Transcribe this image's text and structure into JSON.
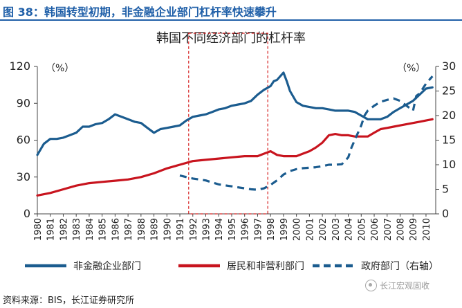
{
  "header": {
    "figure_title": "图 38：韩国转型初期，非金融企业部门杠杆率快速攀升"
  },
  "footer": {
    "source": "资料来源：BIS，长江证券研究所",
    "watermark": "长江宏观固收"
  },
  "colors": {
    "nonfin": "#1b5c8f",
    "household": "#c8141e",
    "gov": "#1b5c8f",
    "highlight": "#d62020",
    "accent": "#1f5fa8"
  },
  "chart_data": {
    "type": "line",
    "title": "韩国不同经济部门的杠杆率",
    "y_left_unit": "（%）",
    "y_right_unit": "（%）",
    "x_range": [
      1980,
      2010.75
    ],
    "ylim_left": [
      0,
      120
    ],
    "ylim_right": [
      0,
      30
    ],
    "y_ticks_left": [
      0,
      30,
      60,
      90,
      120
    ],
    "y_ticks_right": [
      0,
      5,
      10,
      15,
      20,
      25,
      30
    ],
    "x_tick_labels": [
      "1980",
      "1981",
      "1982",
      "1983",
      "1984",
      "1985",
      "1986",
      "1987",
      "1988",
      "1989",
      "1990",
      "1991",
      "1992",
      "1993",
      "1994",
      "1995",
      "1996",
      "1997",
      "1998",
      "1999",
      "2000",
      "2001",
      "2002",
      "2003",
      "2004",
      "2005",
      "2006",
      "2007",
      "2008",
      "2009",
      "2010"
    ],
    "highlight_period": [
      1992,
      1998
    ],
    "series": [
      {
        "name": "非金融企业部门",
        "axis": "left",
        "style": "solid",
        "x": [
          1980,
          1980.5,
          1981,
          1981.5,
          1982,
          1982.5,
          1983,
          1983.5,
          1984,
          1984.5,
          1985,
          1985.5,
          1986,
          1986.5,
          1987,
          1987.5,
          1988,
          1988.5,
          1989,
          1989.5,
          1990,
          1990.5,
          1991,
          1991.5,
          1992,
          1992.5,
          1993,
          1993.5,
          1994,
          1994.5,
          1995,
          1995.5,
          1996,
          1996.5,
          1997,
          1997.5,
          1998,
          1998.25,
          1998.5,
          1998.75,
          1999,
          1999.25,
          1999.5,
          2000,
          2000.5,
          2001,
          2001.5,
          2002,
          2002.5,
          2003,
          2003.5,
          2004,
          2004.5,
          2005,
          2005.5,
          2006,
          2006.5,
          2007,
          2007.5,
          2008,
          2008.5,
          2009,
          2009.5,
          2010,
          2010.5
        ],
        "values": [
          48,
          57,
          61,
          61,
          62,
          64,
          66,
          71,
          71,
          73,
          74,
          77,
          81,
          79,
          77,
          75,
          74,
          70,
          66,
          69,
          70,
          71,
          72,
          76,
          79,
          80,
          81,
          83,
          85,
          86,
          88,
          89,
          90,
          92,
          97,
          101,
          104,
          108,
          109,
          112,
          115,
          108,
          100,
          91,
          88,
          87,
          86,
          86,
          85,
          84,
          84,
          84,
          83,
          80,
          77,
          77,
          77,
          79,
          83,
          86,
          89,
          92,
          97,
          102,
          103
        ]
      },
      {
        "name": "居民和非营利部门",
        "axis": "left",
        "style": "solid",
        "x": [
          1980,
          1981,
          1982,
          1983,
          1984,
          1985,
          1986,
          1987,
          1988,
          1989,
          1990,
          1991,
          1992,
          1993,
          1994,
          1995,
          1996,
          1997,
          1998,
          1998.5,
          1999,
          2000,
          2000.5,
          2001,
          2001.5,
          2002,
          2002.5,
          2003,
          2003.5,
          2004,
          2004.5,
          2005,
          2005.5,
          2006,
          2006.5,
          2007,
          2007.5,
          2008,
          2008.5,
          2009,
          2009.5,
          2010,
          2010.5
        ],
        "values": [
          15,
          17,
          20,
          23,
          25,
          26,
          27,
          28,
          30,
          33,
          37,
          40,
          43,
          44,
          45,
          46,
          47,
          47,
          51,
          48,
          47,
          47,
          49,
          51,
          54,
          58,
          64,
          65,
          64,
          64,
          63,
          63,
          63,
          66,
          69,
          70,
          71,
          72,
          73,
          74,
          75,
          76,
          77
        ]
      },
      {
        "name": "政府部门（右轴）",
        "axis": "right",
        "style": "dashed",
        "x": [
          1991,
          1991.5,
          1992,
          1992.5,
          1993,
          1993.5,
          1994,
          1994.5,
          1995,
          1995.5,
          1996,
          1996.5,
          1997,
          1997.5,
          1998,
          1998.5,
          1999,
          1999.5,
          2000,
          2000.5,
          2001,
          2001.5,
          2002,
          2002.5,
          2003,
          2003.5,
          2004,
          2004.25,
          2004.5,
          2004.75,
          2005,
          2005.25,
          2005.5,
          2006,
          2006.5,
          2007,
          2007.5,
          2008,
          2008.5,
          2009,
          2009.25,
          2009.5,
          2009.75,
          2010,
          2010.5
        ],
        "values": [
          7.8,
          7.5,
          7.2,
          7,
          6.8,
          6.4,
          6,
          5.8,
          5.6,
          5.4,
          5.2,
          5,
          4.9,
          5.2,
          5.9,
          6.8,
          8,
          8.7,
          9.1,
          9.3,
          9.4,
          9.5,
          9.7,
          10,
          10,
          10.1,
          11.5,
          13.5,
          15,
          16.5,
          18,
          20,
          21,
          22,
          22.8,
          23.2,
          23.5,
          23,
          22,
          21,
          24,
          24.5,
          25.5,
          26.5,
          28
        ]
      }
    ],
    "legend": [
      "非金融企业部门",
      "居民和非营利部门",
      "政府部门（右轴）"
    ]
  }
}
